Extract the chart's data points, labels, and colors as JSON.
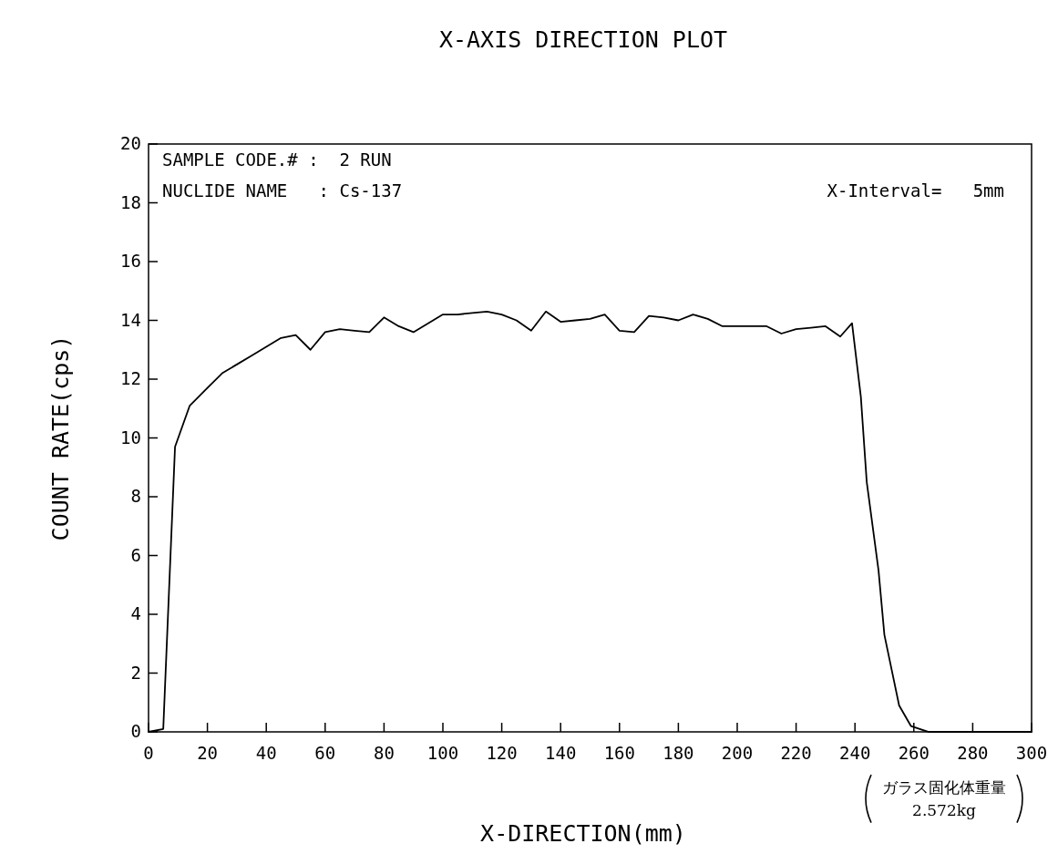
{
  "chart_data": {
    "type": "line",
    "title": "X-AXIS DIRECTION PLOT",
    "xlabel": "X-DIRECTION(mm)",
    "ylabel": "COUNT RATE(cps)",
    "annotations": [
      "SAMPLE CODE.# :  2 RUN",
      "NUCLIDE NAME   : Cs-137",
      "X-Interval=   5mm",
      "ガラス固化体重量\n2.572kg"
    ],
    "xlim": [
      0,
      300
    ],
    "ylim": [
      0,
      20
    ],
    "xticks": [
      0,
      20,
      40,
      60,
      80,
      100,
      120,
      140,
      160,
      180,
      200,
      220,
      240,
      260,
      280,
      300
    ],
    "yticks": [
      0,
      2,
      4,
      6,
      8,
      10,
      12,
      14,
      16,
      18,
      20
    ],
    "grid": false,
    "marker": "none",
    "line_style": "solid",
    "series": [
      {
        "color": "#000000",
        "x": [
          0,
          5,
          9,
          14,
          20,
          25,
          30,
          35,
          40,
          45,
          50,
          55,
          60,
          65,
          70,
          75,
          80,
          85,
          90,
          95,
          100,
          105,
          110,
          115,
          120,
          125,
          130,
          135,
          140,
          145,
          150,
          155,
          160,
          165,
          170,
          175,
          180,
          185,
          190,
          195,
          200,
          205,
          210,
          215,
          220,
          225,
          230,
          235,
          239,
          242,
          244,
          248,
          250,
          255,
          259,
          265,
          300
        ],
        "values": [
          0,
          0.1,
          9.7,
          11.1,
          11.7,
          12.2,
          12.5,
          12.8,
          13.1,
          13.4,
          13.5,
          13.0,
          13.6,
          13.7,
          13.65,
          13.6,
          14.1,
          13.8,
          13.6,
          13.9,
          14.2,
          14.2,
          14.25,
          14.3,
          14.2,
          14.0,
          13.65,
          14.3,
          13.95,
          14.0,
          14.05,
          14.2,
          13.65,
          13.6,
          14.15,
          14.1,
          14.0,
          14.2,
          14.05,
          13.8,
          13.8,
          13.8,
          13.8,
          13.55,
          13.7,
          13.75,
          13.8,
          13.45,
          13.9,
          11.4,
          8.5,
          5.5,
          3.3,
          0.9,
          0.2,
          0,
          0
        ]
      }
    ]
  }
}
